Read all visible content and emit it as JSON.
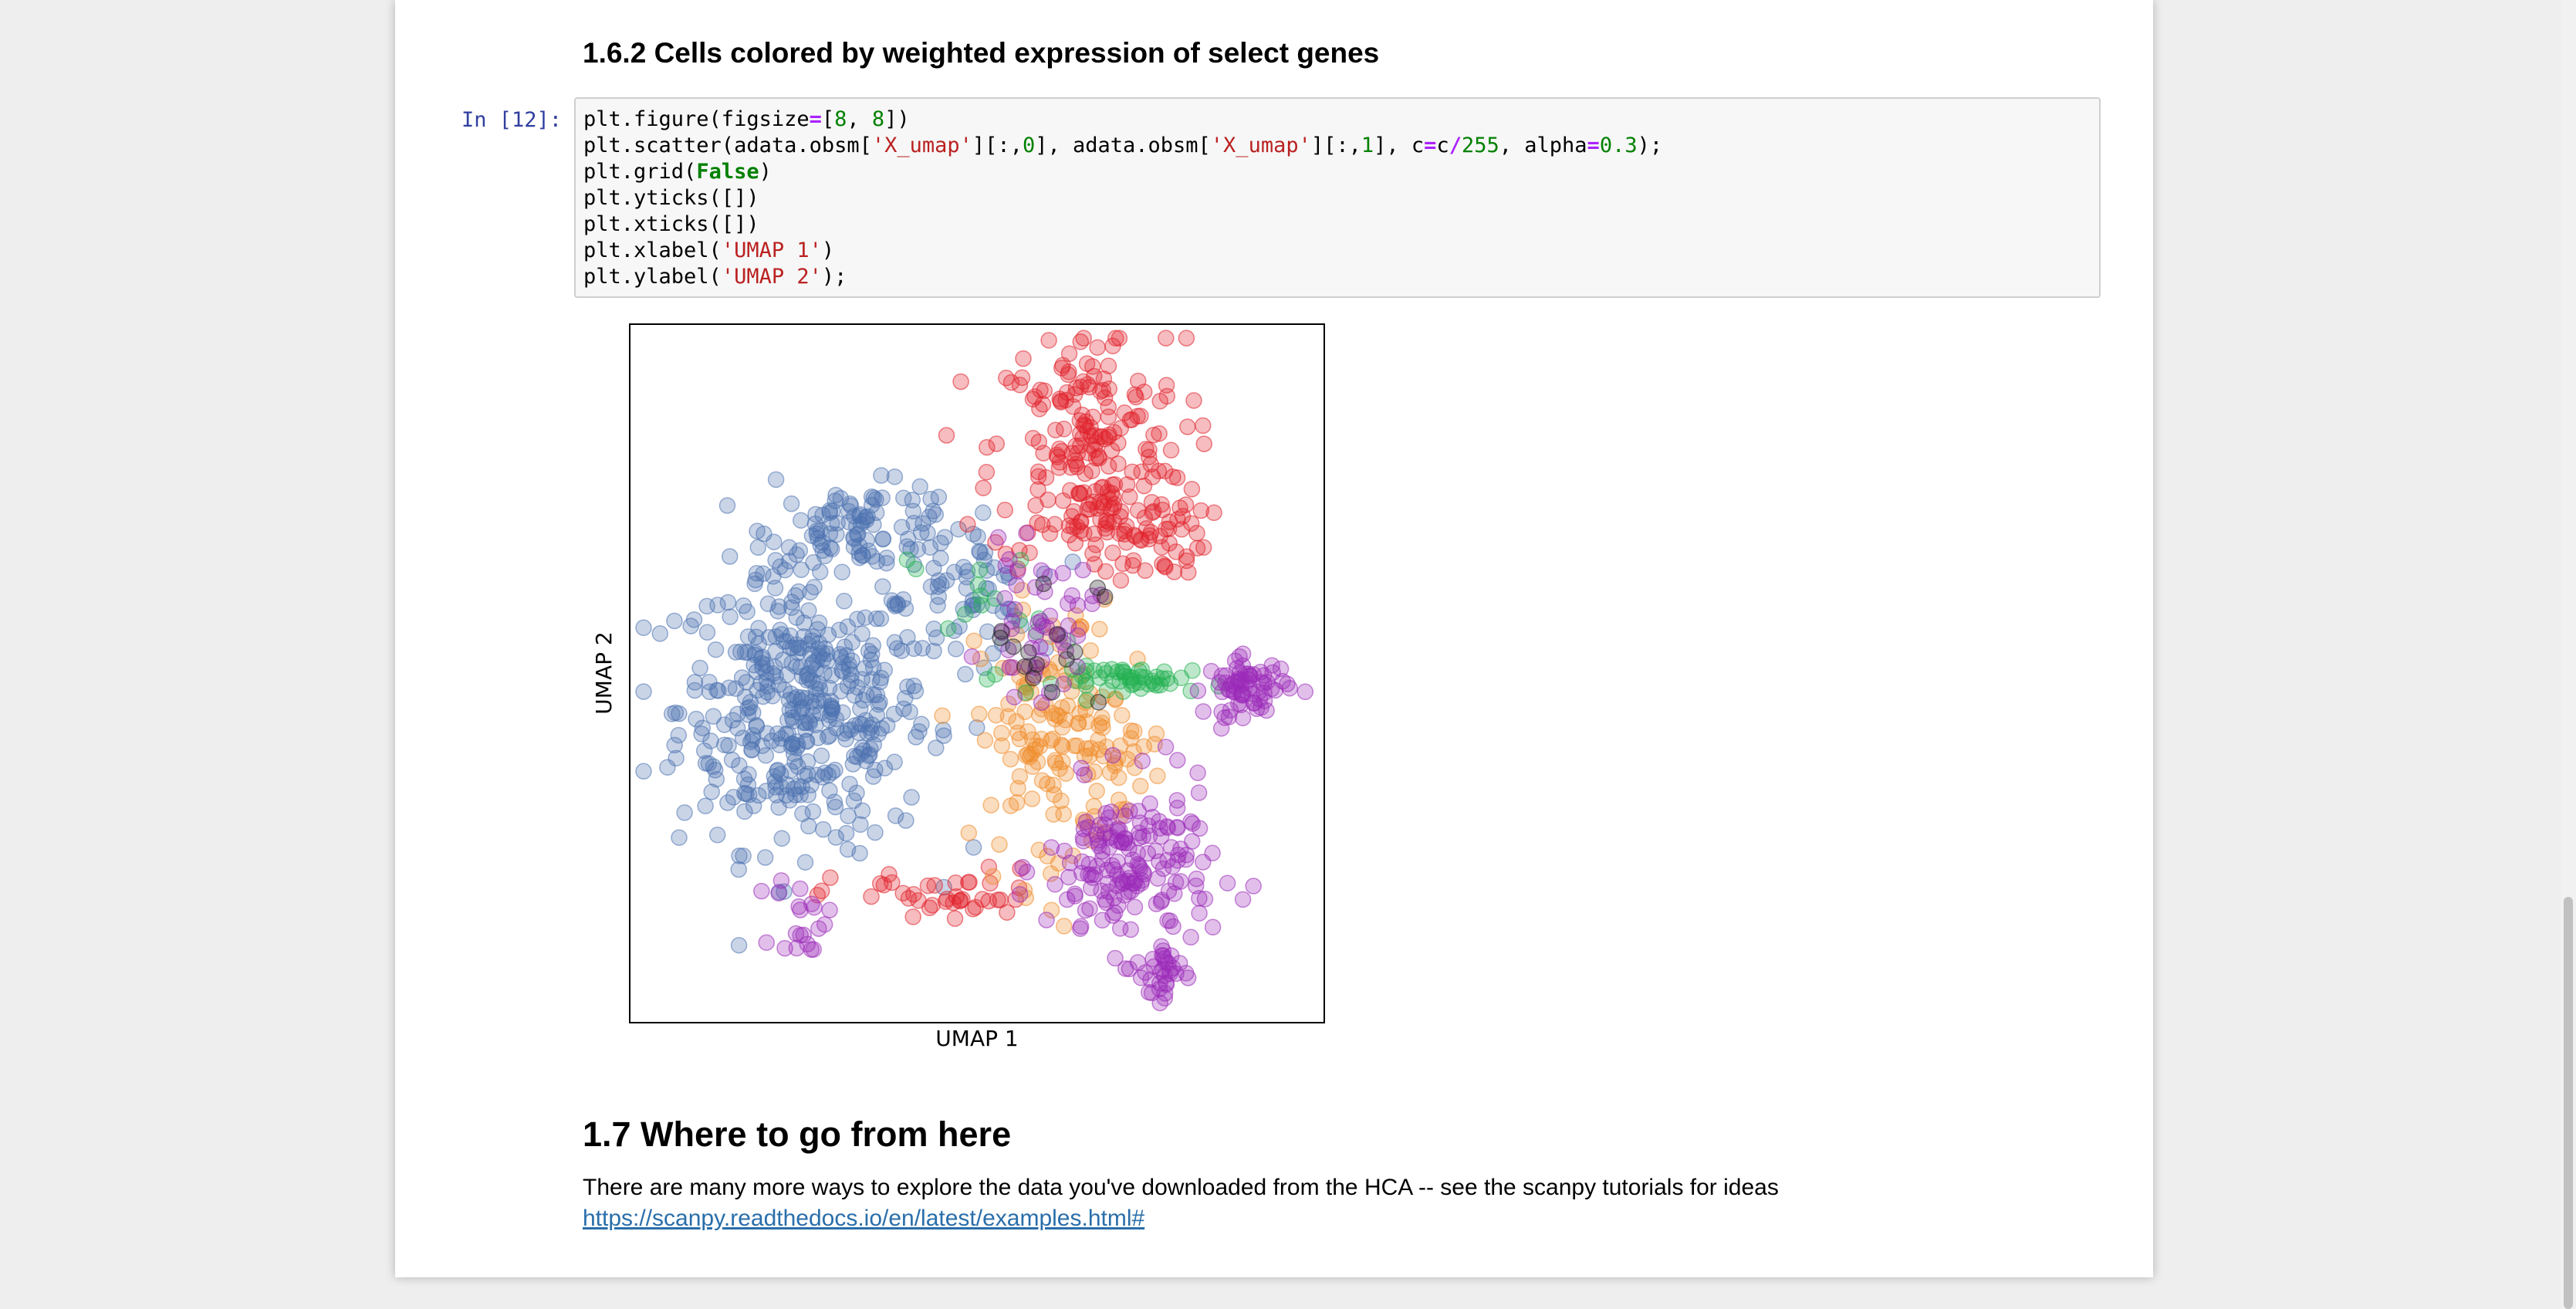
{
  "section_162": {
    "title": "1.6.2  Cells colored by weighted expression of select genes"
  },
  "cell": {
    "prompt": "In [12]:",
    "code_lines": [
      "plt.figure(figsize=[8, 8])",
      "plt.scatter(adata.obsm['X_umap'][:,0], adata.obsm['X_umap'][:,1], c=c/255, alpha=0.3);",
      "plt.grid(False)",
      "plt.yticks([])",
      "plt.xticks([])",
      "plt.xlabel('UMAP 1')",
      "plt.ylabel('UMAP 2');"
    ]
  },
  "chart_data": {
    "type": "scatter",
    "xlabel": "UMAP 1",
    "ylabel": "UMAP 2",
    "xlim": [
      0,
      100
    ],
    "ylim": [
      0,
      100
    ],
    "grid": false,
    "alpha": 0.3,
    "ticks": "none",
    "colors": {
      "blue": "#4c72b0",
      "red": "#e0202a",
      "purple": "#9b2ab8",
      "green": "#20b050",
      "orange": "#f08a28",
      "dark": "#222222"
    },
    "clusters": [
      {
        "color": "blue",
        "count": 420,
        "center": [
          25,
          45
        ],
        "spread": [
          9,
          10
        ]
      },
      {
        "color": "blue",
        "count": 90,
        "center": [
          34,
          71
        ],
        "spread": [
          7,
          3
        ]
      },
      {
        "color": "blue",
        "count": 60,
        "center": [
          48,
          62
        ],
        "spread": [
          5,
          5
        ]
      },
      {
        "color": "red",
        "count": 200,
        "center": [
          66,
          82
        ],
        "spread": [
          7,
          9
        ]
      },
      {
        "color": "red",
        "count": 60,
        "center": [
          73,
          70
        ],
        "spread": [
          5,
          3
        ]
      },
      {
        "color": "red",
        "count": 40,
        "center": [
          45,
          18
        ],
        "spread": [
          8,
          2
        ]
      },
      {
        "color": "orange",
        "count": 120,
        "center": [
          60,
          40
        ],
        "spread": [
          5,
          10
        ]
      },
      {
        "color": "orange",
        "count": 40,
        "center": [
          69,
          40
        ],
        "spread": [
          4,
          4
        ]
      },
      {
        "color": "green",
        "count": 50,
        "center": [
          74,
          49
        ],
        "spread": [
          6,
          1
        ]
      },
      {
        "color": "green",
        "count": 15,
        "center": [
          50,
          60
        ],
        "spread": [
          5,
          5
        ]
      },
      {
        "color": "purple",
        "count": 70,
        "center": [
          89,
          48
        ],
        "spread": [
          3,
          2
        ]
      },
      {
        "color": "purple",
        "count": 170,
        "center": [
          72,
          22
        ],
        "spread": [
          6,
          6
        ]
      },
      {
        "color": "purple",
        "count": 30,
        "center": [
          77,
          7
        ],
        "spread": [
          1.5,
          3
        ]
      },
      {
        "color": "purple",
        "count": 50,
        "center": [
          59,
          57
        ],
        "spread": [
          4,
          5
        ]
      },
      {
        "color": "purple",
        "count": 20,
        "center": [
          25,
          15
        ],
        "spread": [
          2,
          3
        ]
      },
      {
        "color": "dark",
        "count": 15,
        "center": [
          60,
          55
        ],
        "spread": [
          4,
          5
        ]
      }
    ]
  },
  "section_17": {
    "title": "1.7  Where to go from here"
  },
  "paragraph": "There are many more ways to explore the data you've downloaded from the HCA -- see the scanpy tutorials for ideas",
  "link_text": "https://scanpy.readthedocs.io/en/latest/examples.html#"
}
